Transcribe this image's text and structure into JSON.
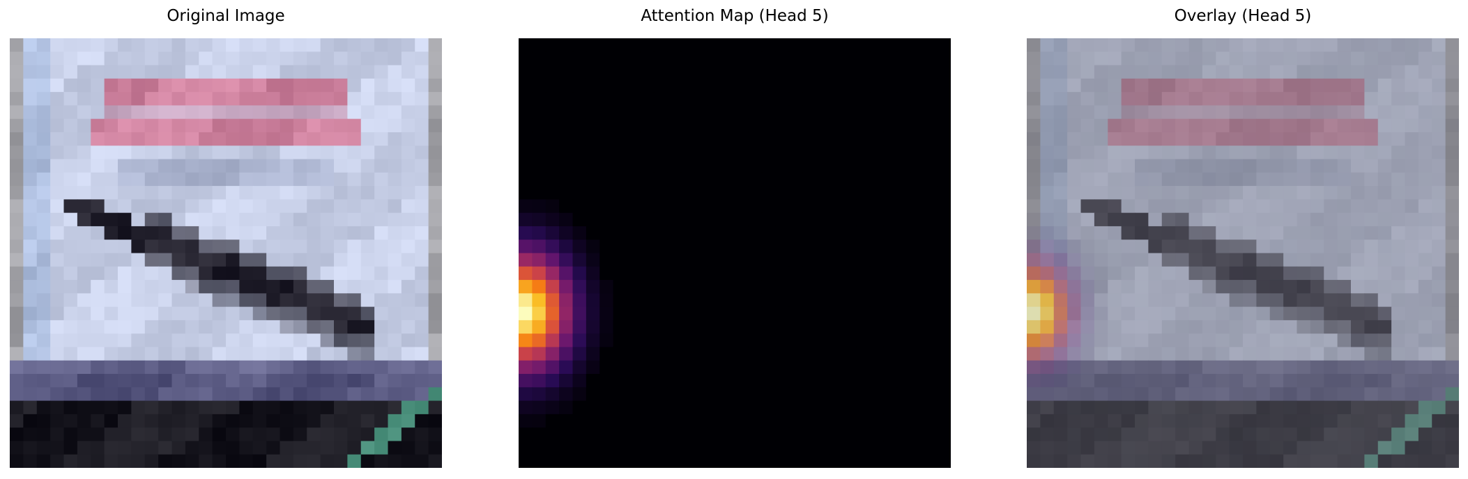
{
  "panels": [
    {
      "title": "Original Image"
    },
    {
      "title": "Attention Map (Head 5)"
    },
    {
      "title": "Overlay (Head 5)"
    }
  ],
  "colors": {
    "sky": "#cfd7ef",
    "sign_text": "#d8708e",
    "bird": "#2c2a36",
    "ground": "#23222a",
    "teal_line": "#4a8f7b",
    "heat_peak": "#fcfdbf",
    "heat_background": "#000004"
  },
  "attention": {
    "peak_row": 0.62,
    "peak_col": 0.0,
    "colormap": "inferno"
  }
}
